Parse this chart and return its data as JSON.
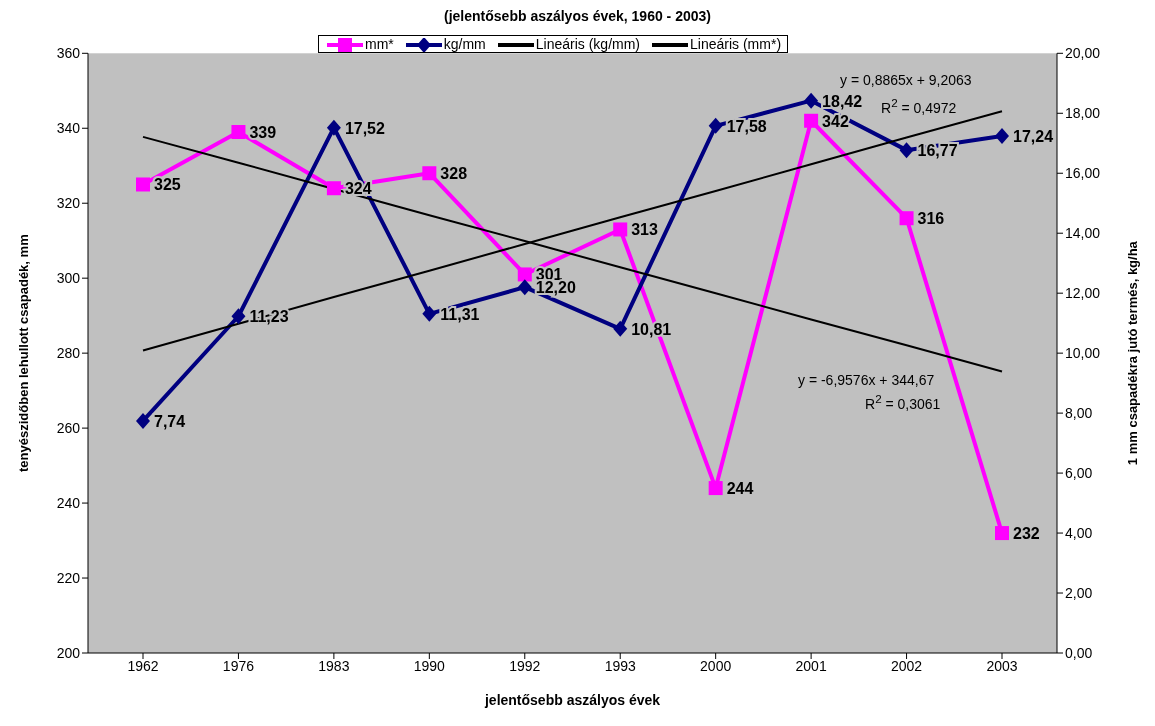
{
  "chart_data": {
    "type": "line",
    "title": "(jelentősebb aszályos évek, 1960 - 2003)",
    "xlabel": "jelentősebb aszályos évek",
    "ylabel": "tenyészidőben lehullott csapadék, mm",
    "y2label": "1 mm csapadékra jutó termés, kg/ha",
    "categories": [
      "1962",
      "1976",
      "1983",
      "1990",
      "1992",
      "1993",
      "2000",
      "2001",
      "2002",
      "2003"
    ],
    "series": [
      {
        "name": "mm*",
        "color": "#ff00ff",
        "marker": "square",
        "values": [
          325,
          339,
          324,
          328,
          301,
          313,
          244,
          342,
          316,
          232
        ],
        "value_labels": [
          "325",
          "339",
          "324",
          "328",
          "301",
          "313",
          "244",
          "342",
          "316",
          "232"
        ]
      },
      {
        "name": "kg/mm",
        "color": "#000080",
        "marker": "diamond",
        "axis": "y2",
        "values": [
          7.74,
          11.23,
          17.52,
          11.31,
          12.2,
          10.81,
          17.58,
          18.42,
          16.77,
          17.24
        ],
        "value_labels": [
          "7,74",
          "11,23",
          "17,52",
          "11,31",
          "12,20",
          "10,81",
          "17,58",
          "18,42",
          "16,77",
          "17,24"
        ]
      },
      {
        "name": "Lineáris (kg/mm)",
        "color": "#000000",
        "marker": "none",
        "axis": "y2",
        "values": [
          10.09,
          10.98,
          11.87,
          12.75,
          13.64,
          14.53,
          15.41,
          16.3,
          17.19,
          18.07
        ]
      },
      {
        "name": "Lineáris (mm*)",
        "color": "#000000",
        "marker": "none",
        "values": [
          337.7,
          330.8,
          323.8,
          316.8,
          309.9,
          302.9,
          296.0,
          289.0,
          282.1,
          275.1
        ]
      }
    ],
    "ylim": [
      200,
      360
    ],
    "yticks": [
      200,
      220,
      240,
      260,
      280,
      300,
      320,
      340,
      360
    ],
    "y2lim": [
      0,
      20
    ],
    "y2ticks": [
      {
        "value": 0,
        "label": "0,00"
      },
      {
        "value": 2,
        "label": "2,00"
      },
      {
        "value": 4,
        "label": "4,00"
      },
      {
        "value": 6,
        "label": "6,00"
      },
      {
        "value": 8,
        "label": "8,00"
      },
      {
        "value": 10,
        "label": "10,00"
      },
      {
        "value": 12,
        "label": "12,00"
      },
      {
        "value": 14,
        "label": "14,00"
      },
      {
        "value": 16,
        "label": "16,00"
      },
      {
        "value": 18,
        "label": "18,00"
      },
      {
        "value": 20,
        "label": "20,00"
      }
    ],
    "legend": "top",
    "annotations": [
      "y = 0,8865x + 9,2063",
      "R$^{2}$ = 0,4972",
      "y = -6,9576x + 344,67",
      "R$^{2}$ = 0,3061"
    ]
  }
}
